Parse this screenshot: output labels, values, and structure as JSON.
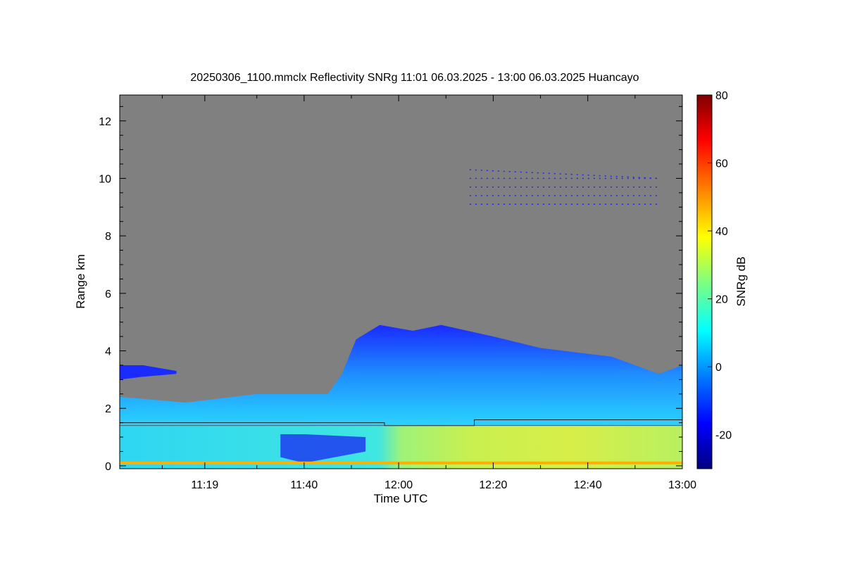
{
  "chart_data": {
    "type": "heatmap",
    "title": "20250306_1100.mmclx Reflectivity SNRg   11:01 06.03.2025 - 13:00 06.03.2025 Huancayo",
    "xlabel": "Time UTC",
    "ylabel": "Range km",
    "colorbar_label": "SNRg dB",
    "xlim_minutes_utc": [
      661,
      780
    ],
    "ylim_km": [
      -0.1,
      12.9
    ],
    "x_ticks": [
      {
        "minute": 679,
        "label": "11:19"
      },
      {
        "minute": 700,
        "label": "11:40"
      },
      {
        "minute": 720,
        "label": "12:00"
      },
      {
        "minute": 740,
        "label": "12:20"
      },
      {
        "minute": 760,
        "label": "12:40"
      },
      {
        "minute": 780,
        "label": "13:00"
      }
    ],
    "y_ticks": [
      0,
      2,
      4,
      6,
      8,
      10,
      12
    ],
    "colorbar_range_db": [
      -30,
      80
    ],
    "colorbar_ticks": [
      -20,
      0,
      20,
      40,
      60,
      80
    ],
    "background_color": "#808080",
    "colormap": [
      "#00007f",
      "#0000ff",
      "#007fff",
      "#00ffff",
      "#7fff7f",
      "#ffff00",
      "#ff7f00",
      "#ff0000",
      "#7f0000"
    ],
    "echo_top_km": [
      {
        "minute": 661,
        "km": 2.4
      },
      {
        "minute": 675,
        "km": 2.2
      },
      {
        "minute": 690,
        "km": 2.5
      },
      {
        "minute": 705,
        "km": 2.5
      },
      {
        "minute": 708,
        "km": 3.2
      },
      {
        "minute": 711,
        "km": 4.4
      },
      {
        "minute": 716,
        "km": 4.9
      },
      {
        "minute": 723,
        "km": 4.7
      },
      {
        "minute": 729,
        "km": 4.9
      },
      {
        "minute": 740,
        "km": 4.5
      },
      {
        "minute": 750,
        "km": 4.1
      },
      {
        "minute": 765,
        "km": 3.8
      },
      {
        "minute": 775,
        "km": 3.2
      },
      {
        "minute": 780,
        "km": 3.5
      }
    ],
    "elevated_layer_km": [
      {
        "minute": 661,
        "base": 3.0,
        "top": 3.5
      },
      {
        "minute": 666,
        "base": 3.1,
        "top": 3.5
      },
      {
        "minute": 673,
        "base": 3.2,
        "top": 3.3
      }
    ],
    "cirrus_layer_km": [
      {
        "minute": 735,
        "base": 9.1,
        "top": 10.4
      },
      {
        "minute": 775,
        "base": 9.1,
        "top": 10.0
      }
    ],
    "dark_core_km": [
      {
        "minute": 695,
        "base": 0.3,
        "top": 1.1
      },
      {
        "minute": 700,
        "base": 0.1,
        "top": 1.1
      },
      {
        "minute": 713,
        "base": 0.5,
        "top": 1.0
      }
    ],
    "surface_band": [
      {
        "minute": 661,
        "snr_db": 40
      },
      {
        "minute": 718,
        "snr_db": 40
      },
      {
        "minute": 725,
        "snr_db": 48
      },
      {
        "minute": 740,
        "snr_db": 55
      },
      {
        "minute": 780,
        "snr_db": 48
      }
    ],
    "boundary_line_km": [
      {
        "minute": 661,
        "km": 1.5
      },
      {
        "minute": 717,
        "km": 1.5
      },
      {
        "minute": 717,
        "km": 1.4
      },
      {
        "minute": 736,
        "km": 1.4
      },
      {
        "minute": 736,
        "km": 1.6
      },
      {
        "minute": 780,
        "km": 1.6
      }
    ],
    "boundary_line_lower_km": [
      {
        "minute": 661,
        "km": 1.4
      },
      {
        "minute": 780,
        "km": 1.4
      }
    ]
  }
}
